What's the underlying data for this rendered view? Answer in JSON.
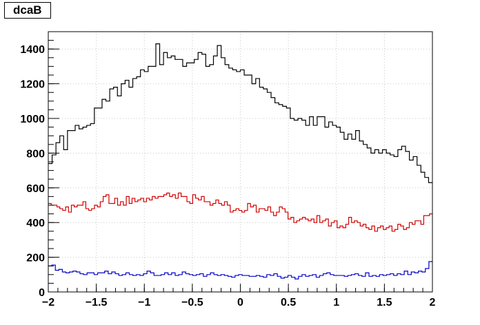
{
  "chart_data": {
    "type": "line",
    "title": "dcaB",
    "xlabel": "",
    "ylabel": "",
    "xlim": [
      -2,
      2
    ],
    "ylim": [
      0,
      1500
    ],
    "x_ticks": [
      -2,
      -1.5,
      -1,
      -0.5,
      0,
      0.5,
      1,
      1.5,
      2
    ],
    "x_tick_labels": [
      "−2",
      "−1.5",
      "−1",
      "−0.5",
      "0",
      "0.5",
      "1",
      "1.5",
      "2"
    ],
    "y_ticks": [
      0,
      200,
      400,
      600,
      800,
      1000,
      1200,
      1400
    ],
    "y_tick_labels": [
      "0",
      "200",
      "400",
      "600",
      "800",
      "1000",
      "1200",
      "1400"
    ],
    "grid": true,
    "bin_edges_from": -2,
    "bin_width": 0.04,
    "series": [
      {
        "color": "#000000",
        "values": [
          740,
          790,
          860,
          900,
          820,
          930,
          930,
          960,
          940,
          950,
          960,
          970,
          1060,
          1060,
          1110,
          1100,
          1170,
          1180,
          1130,
          1200,
          1220,
          1180,
          1230,
          1240,
          1280,
          1270,
          1300,
          1300,
          1430,
          1310,
          1380,
          1350,
          1360,
          1340,
          1340,
          1300,
          1320,
          1320,
          1340,
          1380,
          1370,
          1300,
          1310,
          1360,
          1420,
          1350,
          1310,
          1290,
          1280,
          1270,
          1280,
          1250,
          1250,
          1200,
          1230,
          1180,
          1170,
          1150,
          1120,
          1090,
          1080,
          1070,
          1060,
          1000,
          990,
          1000,
          990,
          960,
          1010,
          960,
          1010,
          1010,
          950,
          980,
          960,
          950,
          920,
          880,
          910,
          880,
          930,
          870,
          850,
          830,
          800,
          820,
          800,
          820,
          800,
          790,
          780,
          820,
          840,
          810,
          760,
          780,
          730,
          690,
          660,
          630
        ]
      },
      {
        "color": "#d20000",
        "values": [
          510,
          500,
          500,
          490,
          480,
          470,
          490,
          460,
          500,
          490,
          500,
          500,
          520,
          480,
          470,
          480,
          500,
          490,
          520,
          550,
          560,
          510,
          510,
          540,
          500,
          520,
          500,
          550,
          510,
          540,
          520,
          530,
          540,
          520,
          540,
          530,
          550,
          540,
          550,
          550,
          560,
          570,
          550,
          560,
          540,
          570,
          550,
          550,
          520,
          510,
          560,
          540,
          530,
          550,
          520,
          520,
          500,
          510,
          530,
          510,
          500,
          520,
          500,
          460,
          470,
          480,
          470,
          460,
          470,
          510,
          490,
          500,
          460,
          480,
          480,
          470,
          490,
          460,
          440,
          460,
          490,
          480,
          460,
          420,
          430,
          400,
          410,
          420,
          430,
          420,
          410,
          420,
          400,
          440,
          400,
          410,
          420,
          380,
          400,
          410,
          370,
          380,
          370,
          390,
          430,
          400,
          410,
          400,
          380,
          390,
          370,
          360,
          380,
          350,
          370,
          380,
          360,
          370,
          380,
          350,
          360,
          390,
          380,
          360,
          370,
          400,
          390,
          410,
          410,
          390,
          440,
          440,
          450
        ]
      },
      {
        "color": "#0000c8",
        "values": [
          150,
          155,
          125,
          130,
          115,
          110,
          115,
          120,
          115,
          105,
          100,
          110,
          110,
          100,
          110,
          110,
          120,
          105,
          115,
          105,
          95,
          100,
          110,
          100,
          95,
          100,
          95,
          105,
          120,
          110,
          95,
          95,
          100,
          110,
          100,
          110,
          95,
          100,
          115,
          105,
          100,
          95,
          100,
          105,
          90,
          100,
          110,
          100,
          95,
          100,
          95,
          90,
          85,
          95,
          100,
          95,
          95,
          90,
          90,
          95,
          90,
          85,
          100,
          95,
          105,
          90,
          80,
          85,
          95,
          85,
          75,
          90,
          100,
          90,
          95,
          100,
          85,
          95,
          105,
          110,
          100,
          95,
          95,
          95,
          90,
          95,
          100,
          105,
          95,
          90,
          110,
          90,
          95,
          90,
          100,
          95,
          100,
          105,
          95,
          105,
          100,
          120,
          100,
          115,
          110,
          120,
          115,
          135,
          175
        ]
      }
    ]
  }
}
